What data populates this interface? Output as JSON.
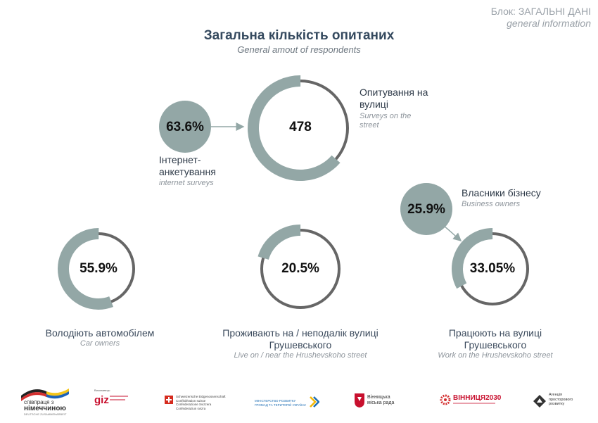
{
  "header": {
    "block_ua": "Блок: ЗАГАЛЬНІ ДАНІ",
    "block_en": "general information"
  },
  "title": "Загальна кількість опитаних",
  "subtitle": "General amout of respondents",
  "total": {
    "value": "478",
    "street_ua_1": "Опитування на",
    "street_ua_2": "вулиці",
    "street_en_1": "Surveys on the",
    "street_en_2": "street",
    "internet_pct": "63.6%",
    "internet_fraction": 0.636,
    "internet_ua_1": "Інтернет-",
    "internet_ua_2": "анкетування",
    "internet_en": "internet surveys"
  },
  "charts": [
    {
      "value": "55.9%",
      "fraction": 0.559,
      "label_ua_1": "Володіють автомобілем",
      "label_ua_2": "",
      "label_en": "Car owners"
    },
    {
      "value": "20.5%",
      "fraction": 0.205,
      "label_ua_1": "Проживають на / неподалік вулиці",
      "label_ua_2": "Грушевського",
      "label_en": "Live on / near the Hrushevskoho street"
    },
    {
      "value": "33.05%",
      "fraction": 0.3305,
      "label_ua_1": "Працюють на вулиці",
      "label_ua_2": "Грушевського",
      "label_en": "Work on the Hrushevskoho street"
    }
  ],
  "business": {
    "value": "25.9%",
    "label_ua": "Власники бізнесу",
    "label_en": "Business owners"
  },
  "logos": {
    "germany_1": "співпраця з",
    "germany_2": "німеччиною",
    "germany_3": "DEUTSCHE ZUSAMMENARBEIT",
    "giz_small": "Виконавець:",
    "giz": "giz",
    "swiss_1": "Schweizerische Eidgenossenschaft",
    "swiss_2": "Confédération suisse",
    "swiss_3": "Confederazione Svizzera",
    "swiss_4": "Confederaziun svizra",
    "ministry_1": "МІНІСТЕРСТВО РОЗВИТКУ",
    "ministry_2": "ГРОМАД ТА ТЕРИТОРІЙ УКРАЇНИ",
    "vinnytsia_1": "Вінницька",
    "vinnytsia_2": "міська рада",
    "v2030": "ВІННИЦЯ2030",
    "agency_1": "Агенція",
    "agency_2": "просторового",
    "agency_3": "розвитку"
  },
  "colors": {
    "accent": "#93a7a6",
    "ring_dark": "#666666",
    "title": "#34495e"
  }
}
